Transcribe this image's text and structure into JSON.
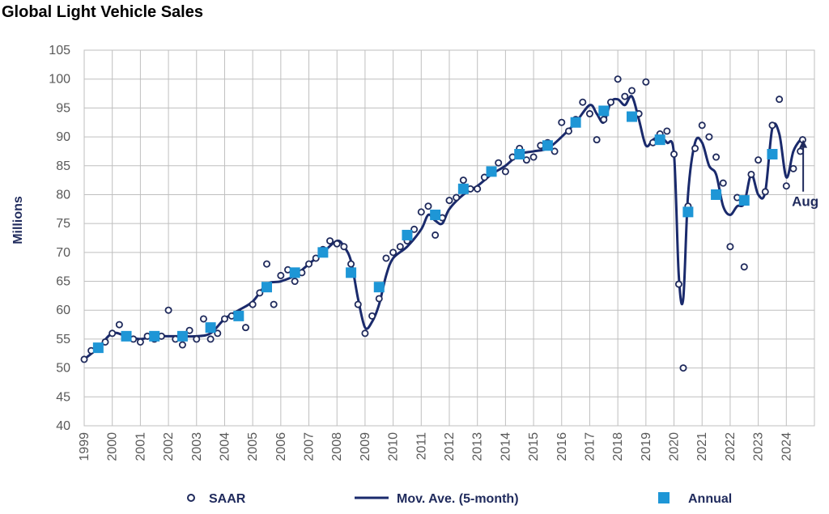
{
  "chart_data": {
    "type": "line",
    "title": "Global Light Vehicle Sales",
    "ylabel": "Millions",
    "xlabel": "",
    "ylim": [
      40,
      105
    ],
    "yticks": [
      40,
      45,
      50,
      55,
      60,
      65,
      70,
      75,
      80,
      85,
      90,
      95,
      100,
      105
    ],
    "xlim": [
      1999,
      2025
    ],
    "xticks": [
      1999,
      2000,
      2001,
      2002,
      2003,
      2004,
      2005,
      2006,
      2007,
      2008,
      2009,
      2010,
      2011,
      2012,
      2013,
      2014,
      2015,
      2016,
      2017,
      2018,
      2019,
      2020,
      2021,
      2022,
      2023,
      2024
    ],
    "grid": true,
    "legend_position": "bottom",
    "annotation": {
      "text": "Aug",
      "x": 2024.6,
      "y": 89.5
    },
    "colors": {
      "saar": "#1f2a5c",
      "moving_average": "#1a2a6c",
      "annual": "#1e96d6"
    },
    "series": [
      {
        "name": "SAAR",
        "marker": "circle",
        "x": [
          1999.0,
          1999.25,
          1999.5,
          1999.75,
          2000.0,
          2000.25,
          2000.5,
          2000.75,
          2001.0,
          2001.25,
          2001.5,
          2001.75,
          2002.0,
          2002.25,
          2002.5,
          2002.75,
          2003.0,
          2003.25,
          2003.5,
          2003.75,
          2004.0,
          2004.25,
          2004.5,
          2004.75,
          2005.0,
          2005.25,
          2005.5,
          2005.75,
          2006.0,
          2006.25,
          2006.5,
          2006.75,
          2007.0,
          2007.25,
          2007.5,
          2007.75,
          2008.0,
          2008.25,
          2008.5,
          2008.75,
          2009.0,
          2009.25,
          2009.5,
          2009.75,
          2010.0,
          2010.25,
          2010.5,
          2010.75,
          2011.0,
          2011.25,
          2011.5,
          2011.75,
          2012.0,
          2012.25,
          2012.5,
          2012.75,
          2013.0,
          2013.25,
          2013.5,
          2013.75,
          2014.0,
          2014.25,
          2014.5,
          2014.75,
          2015.0,
          2015.25,
          2015.5,
          2015.75,
          2016.0,
          2016.25,
          2016.5,
          2016.75,
          2017.0,
          2017.25,
          2017.5,
          2017.75,
          2018.0,
          2018.25,
          2018.5,
          2018.75,
          2019.0,
          2019.25,
          2019.5,
          2019.75,
          2020.0,
          2020.17,
          2020.33,
          2020.5,
          2020.75,
          2021.0,
          2021.25,
          2021.5,
          2021.75,
          2022.0,
          2022.25,
          2022.5,
          2022.75,
          2023.0,
          2023.25,
          2023.5,
          2023.75,
          2024.0,
          2024.25,
          2024.5,
          2024.58
        ],
        "y": [
          51.5,
          53.0,
          53.5,
          54.5,
          56.0,
          57.5,
          55.5,
          55.0,
          54.5,
          55.5,
          55.0,
          55.5,
          60.0,
          55.0,
          54.0,
          56.5,
          55.0,
          58.5,
          55.0,
          56.0,
          58.5,
          59.0,
          59.5,
          57.0,
          61.0,
          63.0,
          68.0,
          61.0,
          66.0,
          67.0,
          65.0,
          66.5,
          68.0,
          69.0,
          70.5,
          72.0,
          71.5,
          71.0,
          68.0,
          61.0,
          56.0,
          59.0,
          62.0,
          69.0,
          70.0,
          71.0,
          72.0,
          74.0,
          77.0,
          78.0,
          73.0,
          76.0,
          79.0,
          79.5,
          82.5,
          81.0,
          81.0,
          83.0,
          84.0,
          85.5,
          84.0,
          86.5,
          88.0,
          86.0,
          86.5,
          88.5,
          89.0,
          87.5,
          92.5,
          91.0,
          93.0,
          96.0,
          94.0,
          89.5,
          93.0,
          96.0,
          100.0,
          97.0,
          98.0,
          94.0,
          99.5,
          89.0,
          90.5,
          91.0,
          87.0,
          64.5,
          50.0,
          78.0,
          88.0,
          92.0,
          90.0,
          86.5,
          82.0,
          71.0,
          79.5,
          67.5,
          83.5,
          86.0,
          80.5,
          92.0,
          96.5,
          81.5,
          84.5,
          87.5,
          89.5
        ]
      },
      {
        "name": "Mov. Ave. (5-month)",
        "marker": "line",
        "x": [
          1999.0,
          1999.5,
          2000.0,
          2000.5,
          2001.0,
          2001.5,
          2002.0,
          2002.5,
          2003.0,
          2003.5,
          2004.0,
          2004.5,
          2005.0,
          2005.5,
          2006.0,
          2006.5,
          2007.0,
          2007.5,
          2008.0,
          2008.25,
          2008.5,
          2008.75,
          2009.0,
          2009.25,
          2009.5,
          2009.75,
          2010.0,
          2010.5,
          2011.0,
          2011.25,
          2011.5,
          2011.75,
          2012.0,
          2012.5,
          2013.0,
          2013.5,
          2014.0,
          2014.5,
          2015.0,
          2015.5,
          2016.0,
          2016.5,
          2017.0,
          2017.25,
          2017.5,
          2017.75,
          2018.0,
          2018.25,
          2018.5,
          2018.75,
          2019.0,
          2019.25,
          2019.5,
          2019.75,
          2020.0,
          2020.17,
          2020.33,
          2020.5,
          2020.75,
          2021.0,
          2021.25,
          2021.5,
          2021.75,
          2022.0,
          2022.25,
          2022.5,
          2022.75,
          2023.0,
          2023.25,
          2023.5,
          2023.75,
          2024.0,
          2024.25,
          2024.5,
          2024.58
        ],
        "y": [
          51.5,
          53.5,
          56.0,
          55.5,
          55.0,
          55.5,
          55.5,
          55.5,
          55.5,
          56.0,
          58.5,
          60.0,
          61.5,
          64.5,
          65.0,
          66.0,
          68.0,
          70.0,
          72.0,
          71.0,
          68.5,
          62.0,
          57.0,
          58.0,
          61.0,
          66.0,
          69.0,
          71.0,
          74.0,
          76.5,
          75.5,
          75.0,
          77.5,
          80.0,
          81.5,
          83.5,
          85.0,
          87.0,
          87.5,
          88.0,
          90.0,
          92.5,
          95.5,
          94.0,
          92.5,
          96.0,
          96.5,
          95.5,
          97.0,
          93.0,
          88.5,
          89.5,
          90.0,
          89.0,
          87.0,
          66.0,
          62.0,
          80.0,
          89.0,
          89.0,
          85.0,
          83.5,
          78.0,
          76.5,
          78.0,
          78.5,
          83.5,
          80.0,
          80.5,
          91.5,
          90.5,
          83.0,
          87.5,
          89.5,
          89.5
        ]
      },
      {
        "name": "Annual",
        "marker": "square",
        "x": [
          1999.5,
          2000.5,
          2001.5,
          2002.5,
          2003.5,
          2004.5,
          2005.5,
          2006.5,
          2007.5,
          2008.5,
          2009.5,
          2010.5,
          2011.5,
          2012.5,
          2013.5,
          2014.5,
          2015.5,
          2016.5,
          2017.5,
          2018.5,
          2019.5,
          2020.5,
          2021.5,
          2022.5,
          2023.5
        ],
        "y": [
          53.5,
          55.5,
          55.5,
          55.5,
          57.0,
          59.0,
          64.0,
          66.5,
          70.0,
          66.5,
          64.0,
          73.0,
          76.5,
          81.0,
          84.0,
          87.0,
          88.5,
          92.5,
          94.5,
          93.5,
          89.5,
          77.0,
          80.0,
          79.0,
          87.0
        ]
      }
    ]
  }
}
